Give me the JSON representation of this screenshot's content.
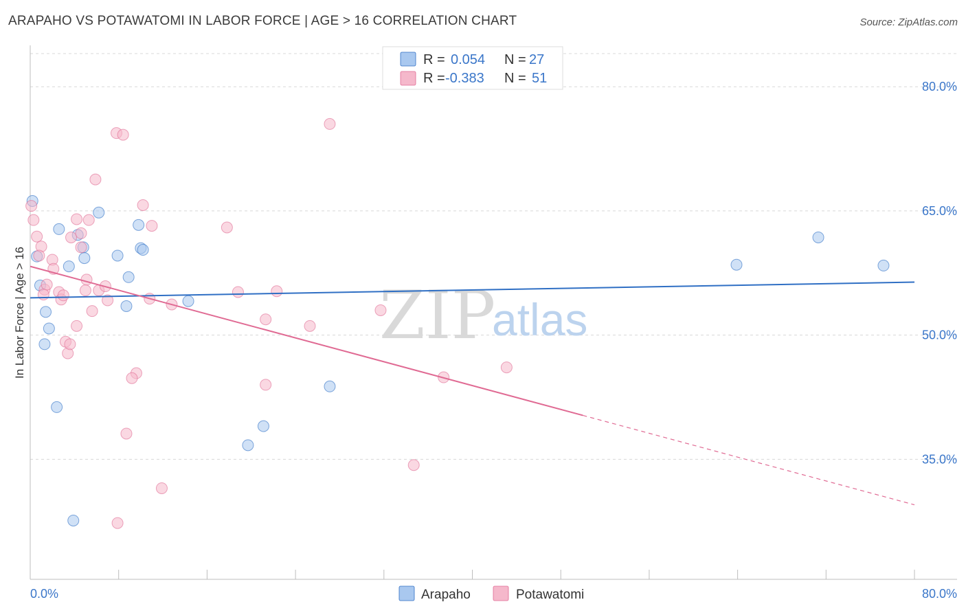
{
  "title": "ARAPAHO VS POTAWATOMI IN LABOR FORCE | AGE > 16 CORRELATION CHART",
  "source": "Source: ZipAtlas.com",
  "watermark": {
    "zip": "ZIP",
    "atlas": "atlas"
  },
  "legend": {
    "r_label": "R =",
    "n_label": "N =",
    "rows": [
      {
        "name": "Arapaho",
        "r": "0.054",
        "n": "27"
      },
      {
        "name": "Potawatomi",
        "r": "-0.383",
        "n": "51"
      }
    ]
  },
  "colors": {
    "arapaho_fill": "#a9c8ef",
    "arapaho_line": "#2f6fc4",
    "potawatomi_fill": "#f5b8cb",
    "potawatomi_line": "#e06a93",
    "tick_text": "#3a76c9",
    "grid": "#d8d8d8"
  },
  "chart_data": {
    "type": "scatter",
    "title": "ARAPAHO VS POTAWATOMI IN LABOR FORCE | AGE > 16 CORRELATION CHART",
    "xlabel": "",
    "ylabel": "In Labor Force | Age > 16",
    "xlim": [
      0,
      80
    ],
    "ylim": [
      20.5,
      84
    ],
    "x_tick_labels": [
      {
        "value": 0,
        "label": "0.0%"
      },
      {
        "value": 80,
        "label": "80.0%"
      }
    ],
    "y_tick_labels": [
      {
        "value": 80,
        "label": "80.0%"
      },
      {
        "value": 65,
        "label": "65.0%"
      },
      {
        "value": 50,
        "label": "50.0%"
      },
      {
        "value": 35,
        "label": "35.0%"
      }
    ],
    "grid": true,
    "series": [
      {
        "name": "Arapaho",
        "points": [
          [
            0.2,
            66.2
          ],
          [
            2.6,
            62.8
          ],
          [
            6.2,
            64.8
          ],
          [
            9.8,
            63.3
          ],
          [
            4.3,
            62.1
          ],
          [
            4.8,
            60.6
          ],
          [
            10.0,
            60.5
          ],
          [
            10.2,
            60.3
          ],
          [
            0.6,
            59.5
          ],
          [
            4.9,
            59.3
          ],
          [
            7.9,
            59.6
          ],
          [
            3.5,
            58.3
          ],
          [
            0.9,
            56.0
          ],
          [
            8.9,
            57.0
          ],
          [
            1.4,
            52.8
          ],
          [
            1.7,
            50.8
          ],
          [
            8.7,
            53.5
          ],
          [
            14.3,
            54.1
          ],
          [
            1.3,
            48.9
          ],
          [
            27.1,
            43.8
          ],
          [
            2.4,
            41.3
          ],
          [
            21.1,
            39.0
          ],
          [
            19.7,
            36.7
          ],
          [
            3.9,
            27.6
          ],
          [
            63.9,
            58.5
          ],
          [
            71.3,
            61.8
          ],
          [
            77.2,
            58.4
          ]
        ],
        "trend": {
          "x0": 0,
          "y0": 54.5,
          "x1": 80,
          "y1": 56.4
        }
      },
      {
        "name": "Potawatomi",
        "points": [
          [
            0.1,
            65.6
          ],
          [
            0.3,
            63.9
          ],
          [
            0.6,
            61.9
          ],
          [
            1.0,
            60.7
          ],
          [
            0.8,
            59.6
          ],
          [
            2.0,
            59.1
          ],
          [
            2.1,
            58.0
          ],
          [
            3.7,
            61.8
          ],
          [
            4.6,
            62.3
          ],
          [
            4.2,
            64.0
          ],
          [
            5.3,
            63.9
          ],
          [
            4.6,
            60.6
          ],
          [
            7.8,
            74.4
          ],
          [
            8.4,
            74.2
          ],
          [
            5.9,
            68.8
          ],
          [
            10.2,
            65.7
          ],
          [
            11.0,
            63.2
          ],
          [
            17.8,
            63.0
          ],
          [
            1.3,
            55.5
          ],
          [
            1.5,
            56.1
          ],
          [
            1.2,
            54.9
          ],
          [
            2.6,
            55.2
          ],
          [
            2.8,
            54.3
          ],
          [
            3.0,
            54.8
          ],
          [
            5.1,
            56.7
          ],
          [
            5.0,
            55.4
          ],
          [
            6.2,
            55.4
          ],
          [
            6.8,
            55.9
          ],
          [
            7.0,
            54.2
          ],
          [
            10.8,
            54.4
          ],
          [
            12.8,
            53.7
          ],
          [
            18.8,
            55.2
          ],
          [
            22.3,
            55.3
          ],
          [
            5.6,
            52.9
          ],
          [
            21.3,
            51.9
          ],
          [
            25.3,
            51.1
          ],
          [
            31.7,
            53.0
          ],
          [
            4.2,
            51.1
          ],
          [
            3.2,
            49.2
          ],
          [
            3.4,
            47.8
          ],
          [
            3.6,
            48.9
          ],
          [
            9.6,
            45.4
          ],
          [
            9.2,
            44.8
          ],
          [
            21.3,
            44.0
          ],
          [
            37.4,
            44.9
          ],
          [
            43.1,
            46.1
          ],
          [
            8.7,
            38.1
          ],
          [
            11.9,
            31.5
          ],
          [
            34.7,
            34.3
          ],
          [
            7.9,
            27.3
          ],
          [
            27.1,
            75.5
          ]
        ],
        "trend": {
          "x0": 0,
          "y0": 58.3,
          "x1": 50,
          "y1": 40.3,
          "dash_x1": 80,
          "dash_y1": 29.5
        }
      }
    ]
  }
}
